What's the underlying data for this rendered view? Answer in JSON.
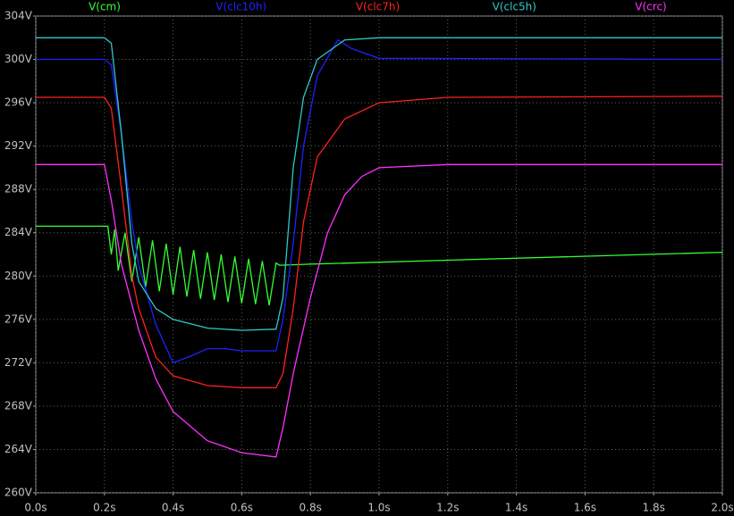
{
  "chart_data": {
    "type": "line",
    "xlim": [
      0,
      2.0
    ],
    "xticks": [
      {
        "value": 0,
        "label": "0.0s"
      },
      {
        "value": 0.2,
        "label": "0.2s"
      },
      {
        "value": 0.4,
        "label": "0.4s"
      },
      {
        "value": 0.6,
        "label": "0.6s"
      },
      {
        "value": 0.8,
        "label": "0.8s"
      },
      {
        "value": 1.0,
        "label": "1.0s"
      },
      {
        "value": 1.2,
        "label": "1.2s"
      },
      {
        "value": 1.4,
        "label": "1.4s"
      },
      {
        "value": 1.6,
        "label": "1.6s"
      },
      {
        "value": 1.8,
        "label": "1.8s"
      },
      {
        "value": 2.0,
        "label": "2.0s"
      }
    ],
    "ylim": [
      260,
      304
    ],
    "yticks": [
      {
        "value": 260,
        "label": "260V"
      },
      {
        "value": 264,
        "label": "264V"
      },
      {
        "value": 268,
        "label": "268V"
      },
      {
        "value": 272,
        "label": "272V"
      },
      {
        "value": 276,
        "label": "276V"
      },
      {
        "value": 280,
        "label": "280V"
      },
      {
        "value": 284,
        "label": "284V"
      },
      {
        "value": 288,
        "label": "288V"
      },
      {
        "value": 292,
        "label": "292V"
      },
      {
        "value": 296,
        "label": "296V"
      },
      {
        "value": 300,
        "label": "300V"
      },
      {
        "value": 304,
        "label": "304V"
      }
    ],
    "grid": true,
    "series": [
      {
        "name": "V(cm)",
        "color": "#33ff33",
        "x": [
          0,
          0.2,
          0.21,
          0.22,
          0.23,
          0.24,
          0.26,
          0.28,
          0.3,
          0.32,
          0.34,
          0.36,
          0.38,
          0.4,
          0.42,
          0.44,
          0.46,
          0.48,
          0.5,
          0.52,
          0.54,
          0.56,
          0.58,
          0.6,
          0.62,
          0.64,
          0.66,
          0.68,
          0.7,
          0.71,
          0.8,
          2.0
        ],
        "values": [
          284.6,
          284.6,
          284.6,
          282,
          284.3,
          280.5,
          284,
          279.5,
          283.6,
          279,
          283.3,
          278.6,
          283,
          278.3,
          282.7,
          278.1,
          282.4,
          277.9,
          282.2,
          277.8,
          282,
          277.6,
          281.8,
          277.5,
          281.6,
          277.4,
          281.4,
          277.3,
          281.2,
          281,
          281.1,
          282.2
        ]
      },
      {
        "name": "V(clc10h)",
        "color": "#2020ff",
        "x": [
          0,
          0.2,
          0.22,
          0.25,
          0.28,
          0.3,
          0.35,
          0.4,
          0.45,
          0.5,
          0.55,
          0.6,
          0.7,
          0.72,
          0.75,
          0.78,
          0.82,
          0.88,
          0.92,
          1.0,
          2.0
        ],
        "values": [
          300,
          300,
          299.5,
          293,
          285,
          281,
          275.5,
          272,
          272.6,
          273.3,
          273.3,
          273.1,
          273.1,
          276,
          283,
          292,
          298.5,
          301.8,
          301,
          300.1,
          300
        ]
      },
      {
        "name": "V(clc7h)",
        "color": "#ff2020",
        "x": [
          0,
          0.2,
          0.22,
          0.25,
          0.28,
          0.3,
          0.35,
          0.4,
          0.5,
          0.6,
          0.7,
          0.72,
          0.75,
          0.78,
          0.82,
          0.9,
          1.0,
          1.2,
          2.0
        ],
        "values": [
          296.5,
          296.5,
          295.5,
          288,
          280,
          277,
          272.5,
          270.8,
          269.9,
          269.7,
          269.7,
          271,
          277,
          285,
          291,
          294.5,
          296,
          296.5,
          296.6
        ]
      },
      {
        "name": "V(clc5h)",
        "color": "#30c8c8",
        "x": [
          0,
          0.2,
          0.22,
          0.25,
          0.28,
          0.3,
          0.35,
          0.4,
          0.5,
          0.6,
          0.7,
          0.72,
          0.75,
          0.78,
          0.82,
          0.9,
          1.0,
          2.0
        ],
        "values": [
          302,
          302,
          301.5,
          293,
          283,
          279.5,
          277,
          276,
          275.2,
          275,
          275.1,
          278,
          290,
          296.5,
          300,
          301.8,
          302,
          302
        ]
      },
      {
        "name": "V(crc)",
        "color": "#ff30ff",
        "x": [
          0,
          0.2,
          0.22,
          0.25,
          0.3,
          0.35,
          0.4,
          0.5,
          0.6,
          0.7,
          0.72,
          0.75,
          0.8,
          0.85,
          0.9,
          0.95,
          1.0,
          1.2,
          2.0
        ],
        "values": [
          290.3,
          290.3,
          287,
          281,
          275,
          270.5,
          267.5,
          264.8,
          263.7,
          263.3,
          266,
          271,
          278,
          284,
          287.5,
          289.2,
          290,
          290.3,
          290.3
        ]
      }
    ]
  }
}
